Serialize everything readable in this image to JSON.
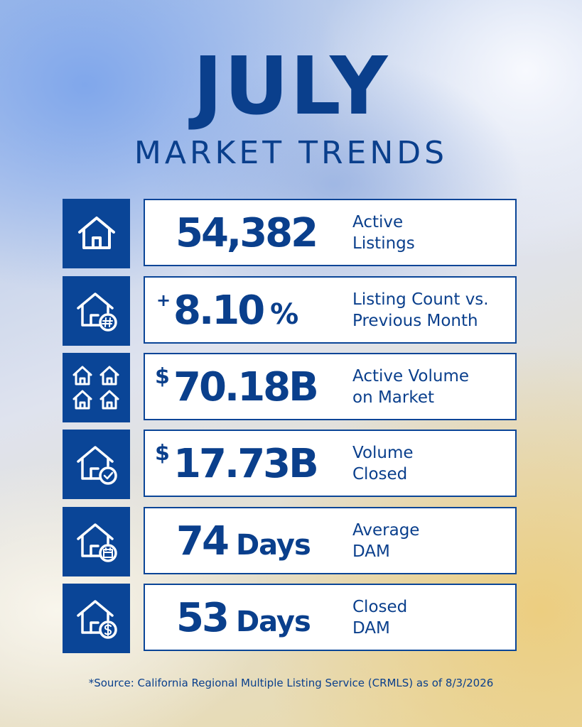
{
  "header": {
    "title": "JULY",
    "subtitle": "MARKET TRENDS"
  },
  "stats": [
    {
      "prefix": "",
      "value": "54,382",
      "suffix": "",
      "label_lines": [
        "Active",
        "Listings"
      ],
      "icon": "house-icon"
    },
    {
      "prefix": "+",
      "value": "8.10",
      "suffix": "%",
      "label_lines": [
        "Listing Count vs.",
        "Previous Month"
      ],
      "icon": "house-hash-icon"
    },
    {
      "prefix": "$",
      "value": "70.18B",
      "suffix": "",
      "label_lines": [
        "Active Volume",
        "on Market"
      ],
      "icon": "four-houses-icon"
    },
    {
      "prefix": "$",
      "value": "17.73B",
      "suffix": "",
      "label_lines": [
        "Volume",
        "Closed"
      ],
      "icon": "house-check-icon"
    },
    {
      "prefix": "",
      "value": "74",
      "suffix": "Days",
      "label_lines": [
        "Average",
        "DAM"
      ],
      "icon": "house-calendar-icon"
    },
    {
      "prefix": "",
      "value": "53",
      "suffix": "Days",
      "label_lines": [
        "Closed",
        "DAM"
      ],
      "icon": "house-dollar-icon"
    }
  ],
  "footer": {
    "source": "*Source: California Regional Multiple Listing Service (CRMLS) as of 8/3/2026"
  },
  "colors": {
    "navy": "#0a4597",
    "text": "#0a3f8c",
    "card": "#ffffff"
  }
}
